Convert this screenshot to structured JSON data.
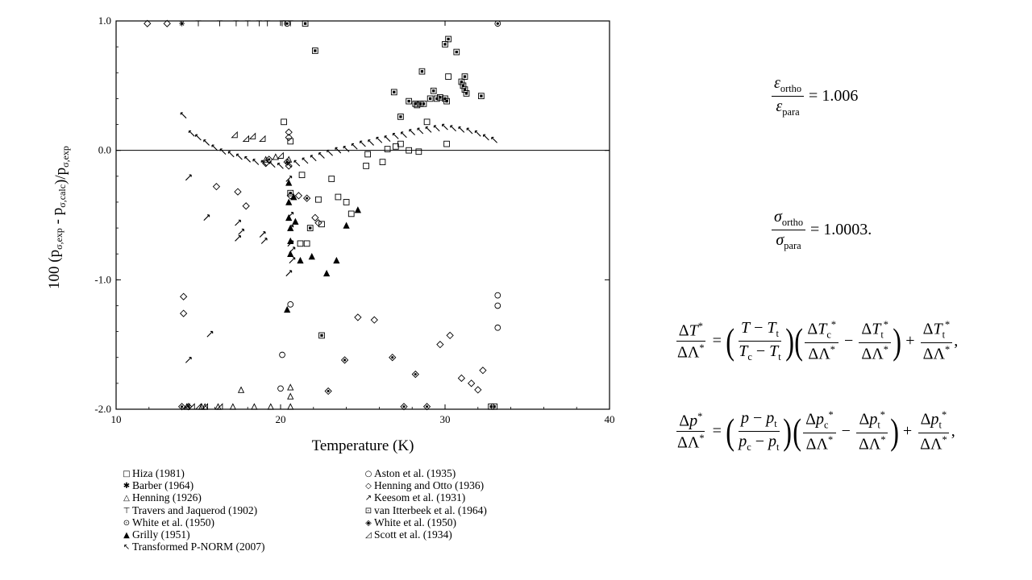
{
  "chart_data": {
    "type": "scatter",
    "xlabel": "Temperature (K)",
    "ylabel_parts": {
      "pre": "100 (p",
      "sub1": "σ,exp",
      "mid": " - p",
      "sub2": "σ,calc",
      "post": ")/p",
      "sub3": "σ,exp"
    },
    "xlim": [
      10,
      40
    ],
    "ylim": [
      -2.0,
      1.0
    ],
    "xticks": [
      10,
      20,
      30,
      40
    ],
    "yticks": [
      -2.0,
      -1.0,
      0.0,
      1.0
    ],
    "ytick_labels": [
      "-2.0",
      "-1.0",
      "0.0",
      "1.0"
    ],
    "xtick_labels": [
      "10",
      "20",
      "30",
      "40"
    ],
    "reference_line_y": 0.0,
    "series": [
      {
        "name": "Hiza (1981)",
        "marker": "square",
        "points": [
          [
            20.2,
            0.22
          ],
          [
            20.6,
            0.07
          ],
          [
            21.3,
            -0.19
          ],
          [
            21.2,
            -0.72
          ],
          [
            21.6,
            -0.72
          ],
          [
            22.3,
            -0.38
          ],
          [
            22.5,
            -0.57
          ],
          [
            23.1,
            -0.22
          ],
          [
            23.5,
            -0.36
          ],
          [
            24.0,
            -0.4
          ],
          [
            24.3,
            -0.49
          ],
          [
            25.2,
            -0.12
          ],
          [
            25.3,
            -0.03
          ],
          [
            26.2,
            -0.09
          ],
          [
            26.5,
            0.01
          ],
          [
            27.0,
            0.03
          ],
          [
            27.3,
            0.05
          ],
          [
            27.8,
            0.0
          ],
          [
            28.4,
            -0.01
          ],
          [
            28.3,
            0.35
          ],
          [
            28.9,
            0.22
          ],
          [
            30.1,
            0.05
          ],
          [
            30.2,
            0.57
          ]
        ]
      },
      {
        "name": "Barber (1964)",
        "marker": "asterisk",
        "points": [
          [
            14.0,
            0.98
          ]
        ]
      },
      {
        "name": "Henning (1926)",
        "marker": "triangle",
        "points": [
          [
            14.3,
            -1.98
          ],
          [
            15.2,
            -1.98
          ],
          [
            15.4,
            -1.98
          ],
          [
            16.2,
            -1.98
          ],
          [
            17.1,
            -1.98
          ],
          [
            17.6,
            -1.85
          ],
          [
            18.4,
            -1.98
          ],
          [
            19.4,
            -1.98
          ],
          [
            20.6,
            -1.83
          ],
          [
            20.6,
            -1.9
          ],
          [
            20.6,
            -1.98
          ],
          [
            19.1,
            -0.07
          ],
          [
            19.7,
            -0.05
          ],
          [
            20.5,
            -0.07
          ]
        ]
      },
      {
        "name": "Travers and Jaquerod (1902)",
        "marker": "tee",
        "points": [
          [
            15.0,
            0.98
          ],
          [
            16.3,
            0.98
          ],
          [
            17.3,
            0.98
          ],
          [
            18.0,
            0.98
          ],
          [
            18.7,
            0.98
          ],
          [
            19.2,
            0.98
          ],
          [
            20.1,
            0.98
          ],
          [
            20.3,
            0.98
          ],
          [
            20.6,
            0.98
          ]
        ]
      },
      {
        "name": "White et al. (1950)",
        "marker": "circle-dot",
        "points": [
          [
            33.2,
            0.98
          ],
          [
            20.4,
            0.98
          ]
        ]
      },
      {
        "name": "Grilly (1951)",
        "marker": "filled-triangle",
        "points": [
          [
            20.5,
            -0.25
          ],
          [
            20.5,
            -0.4
          ],
          [
            20.5,
            -0.52
          ],
          [
            20.6,
            -0.6
          ],
          [
            20.6,
            -0.7
          ],
          [
            20.6,
            -0.8
          ],
          [
            20.4,
            -1.23
          ],
          [
            21.2,
            -0.85
          ],
          [
            21.9,
            -0.82
          ],
          [
            22.8,
            -0.95
          ],
          [
            23.4,
            -0.85
          ],
          [
            24.0,
            -0.58
          ],
          [
            24.7,
            -0.46
          ],
          [
            20.8,
            -0.36
          ],
          [
            20.9,
            -0.55
          ]
        ]
      },
      {
        "name": "Transformed P-NORM (2007)",
        "marker": "nw-arrow",
        "points": [
          [
            14.1,
            0.27
          ],
          [
            14.6,
            0.13
          ],
          [
            15.0,
            0.1
          ],
          [
            15.5,
            0.06
          ],
          [
            16.0,
            0.02
          ],
          [
            16.5,
            -0.01
          ],
          [
            17.0,
            -0.03
          ],
          [
            17.5,
            -0.05
          ],
          [
            18.0,
            -0.07
          ],
          [
            18.5,
            -0.09
          ],
          [
            19.0,
            -0.1
          ],
          [
            19.5,
            -0.11
          ],
          [
            20.0,
            -0.12
          ],
          [
            20.5,
            -0.11
          ],
          [
            21.0,
            -0.1
          ],
          [
            21.5,
            -0.08
          ],
          [
            22.0,
            -0.06
          ],
          [
            22.5,
            -0.04
          ],
          [
            23.0,
            -0.02
          ],
          [
            23.5,
            0.0
          ],
          [
            24.0,
            0.01
          ],
          [
            24.5,
            0.03
          ],
          [
            25.0,
            0.05
          ],
          [
            25.5,
            0.06
          ],
          [
            26.0,
            0.08
          ],
          [
            26.5,
            0.09
          ],
          [
            27.0,
            0.11
          ],
          [
            27.5,
            0.12
          ],
          [
            28.0,
            0.14
          ],
          [
            28.5,
            0.15
          ],
          [
            29.0,
            0.16
          ],
          [
            29.5,
            0.17
          ],
          [
            30.0,
            0.18
          ],
          [
            30.5,
            0.17
          ],
          [
            31.0,
            0.16
          ],
          [
            31.5,
            0.15
          ],
          [
            32.0,
            0.13
          ],
          [
            32.5,
            0.1
          ],
          [
            33.0,
            0.08
          ]
        ]
      },
      {
        "name": "Aston et al. (1935)",
        "marker": "circle",
        "points": [
          [
            20.1,
            -1.58
          ],
          [
            20.6,
            -1.19
          ],
          [
            20.0,
            -1.84
          ],
          [
            33.2,
            -1.12
          ],
          [
            33.2,
            -1.2
          ],
          [
            33.2,
            -1.37
          ]
        ]
      },
      {
        "name": "Henning and Otto (1936)",
        "marker": "diamond",
        "points": [
          [
            11.9,
            0.98
          ],
          [
            13.1,
            0.98
          ],
          [
            14.1,
            -1.13
          ],
          [
            14.1,
            -1.26
          ],
          [
            16.1,
            -0.28
          ],
          [
            17.4,
            -0.32
          ],
          [
            17.9,
            -0.43
          ],
          [
            20.5,
            0.14
          ],
          [
            20.5,
            0.1
          ],
          [
            20.5,
            -0.12
          ],
          [
            21.1,
            -0.35
          ],
          [
            22.1,
            -0.52
          ],
          [
            22.3,
            -0.56
          ],
          [
            24.7,
            -1.29
          ],
          [
            25.7,
            -1.31
          ],
          [
            29.7,
            -1.5
          ],
          [
            30.3,
            -1.43
          ],
          [
            31.0,
            -1.76
          ],
          [
            31.6,
            -1.8
          ],
          [
            32.0,
            -1.85
          ],
          [
            32.3,
            -1.7
          ],
          [
            19.1,
            -0.1
          ],
          [
            20.6,
            -0.35
          ]
        ]
      },
      {
        "name": "Keesom et al. (1931)",
        "marker": "ne-arrow",
        "points": [
          [
            14.4,
            -0.21
          ],
          [
            15.5,
            -0.52
          ],
          [
            17.4,
            -0.56
          ],
          [
            17.4,
            -0.68
          ],
          [
            17.6,
            -0.63
          ],
          [
            18.9,
            -0.65
          ],
          [
            19.0,
            -0.7
          ],
          [
            20.6,
            -0.5
          ],
          [
            20.6,
            -0.6
          ],
          [
            20.6,
            -0.72
          ],
          [
            20.7,
            -0.85
          ],
          [
            20.7,
            -0.77
          ],
          [
            20.5,
            -0.95
          ],
          [
            15.7,
            -1.42
          ],
          [
            14.4,
            -1.62
          ],
          [
            20.5,
            -0.22
          ]
        ]
      },
      {
        "name": "van Itterbeek et al. (1964)",
        "marker": "dotted-square",
        "points": [
          [
            21.5,
            0.98
          ],
          [
            22.1,
            0.77
          ],
          [
            26.9,
            0.45
          ],
          [
            27.3,
            0.26
          ],
          [
            27.8,
            0.38
          ],
          [
            28.2,
            0.36
          ],
          [
            28.5,
            0.36
          ],
          [
            28.7,
            0.36
          ],
          [
            28.6,
            0.61
          ],
          [
            29.1,
            0.4
          ],
          [
            29.3,
            0.46
          ],
          [
            29.5,
            0.4
          ],
          [
            29.7,
            0.41
          ],
          [
            30.0,
            0.4
          ],
          [
            30.1,
            0.38
          ],
          [
            30.0,
            0.82
          ],
          [
            30.2,
            0.86
          ],
          [
            30.7,
            0.76
          ],
          [
            31.0,
            0.53
          ],
          [
            31.1,
            0.5
          ],
          [
            31.2,
            0.47
          ],
          [
            31.2,
            0.57
          ],
          [
            31.3,
            0.44
          ],
          [
            32.2,
            0.42
          ],
          [
            20.6,
            -0.33
          ],
          [
            21.8,
            -0.6
          ],
          [
            22.5,
            -1.43
          ],
          [
            32.8,
            -1.98
          ],
          [
            33.0,
            -1.98
          ]
        ]
      },
      {
        "name": "White et al. (1950)",
        "marker": "dotted-diamond",
        "points": [
          [
            19.3,
            -0.07
          ],
          [
            20.4,
            -0.09
          ],
          [
            21.6,
            -0.37
          ],
          [
            22.9,
            -1.86
          ],
          [
            23.9,
            -1.62
          ],
          [
            26.8,
            -1.6
          ],
          [
            27.5,
            -1.98
          ],
          [
            28.2,
            -1.73
          ],
          [
            28.9,
            -1.98
          ],
          [
            14.0,
            -1.98
          ],
          [
            14.4,
            -1.98
          ]
        ]
      },
      {
        "name": "Scott et al. (1934)",
        "marker": "right-triangle",
        "points": [
          [
            14.3,
            -1.98
          ],
          [
            14.6,
            -1.98
          ],
          [
            15.0,
            -1.98
          ],
          [
            15.4,
            -1.98
          ],
          [
            16.3,
            -1.98
          ],
          [
            17.2,
            0.12
          ],
          [
            18.3,
            0.11
          ],
          [
            18.9,
            0.09
          ],
          [
            17.9,
            0.09
          ],
          [
            20.0,
            -0.04
          ]
        ]
      }
    ]
  },
  "equations": {
    "eq1": {
      "num_sym": "ε",
      "num_sub": "ortho",
      "den_sym": "ε",
      "den_sub": "para",
      "rhs": "= 1.006"
    },
    "eq2": {
      "num_sym": "σ",
      "num_sub": "ortho",
      "den_sym": "σ",
      "den_sub": "para",
      "rhs": "= 1.0003."
    }
  }
}
